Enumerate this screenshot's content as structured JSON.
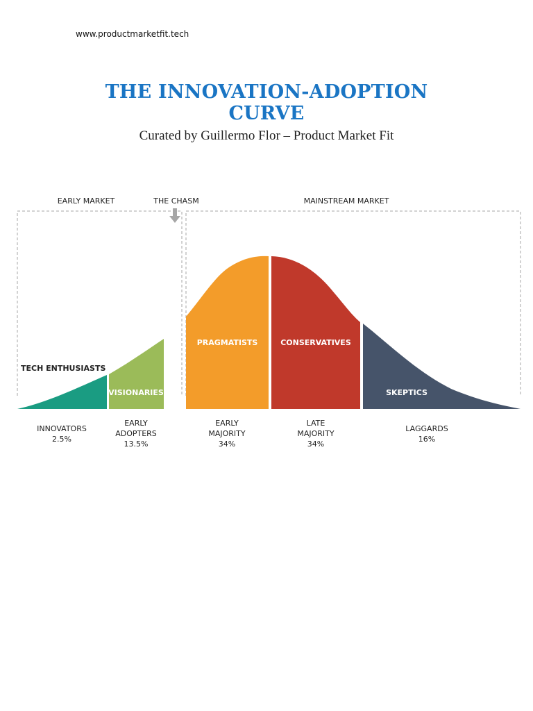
{
  "header": {
    "url": "www.productmarketfit.tech",
    "title_line1": "THE INNOVATION-ADOPTION",
    "title_line2": "CURVE",
    "subtitle": "Curated by Guillermo Flor – Product Market Fit"
  },
  "diagram": {
    "regions": {
      "early_market": "EARLY MARKET",
      "chasm": "THE CHASM",
      "mainstream_market": "MAINSTREAM MARKET"
    },
    "tech_enthusiasts": "TECH ENTHUSIASTS",
    "segments": [
      {
        "persona": "",
        "line1": "INNOVATORS",
        "line2": "",
        "share": "2.5%",
        "color": "#1a9c82"
      },
      {
        "persona": "VISIONARIES",
        "line1": "EARLY",
        "line2": "ADOPTERS",
        "share": "13.5%",
        "color": "#9bbb59"
      },
      {
        "persona": "PRAGMATISTS",
        "line1": "EARLY",
        "line2": "MAJORITY",
        "share": "34%",
        "color": "#f39c2a"
      },
      {
        "persona": "CONSERVATIVES",
        "line1": "LATE",
        "line2": "MAJORITY",
        "share": "34%",
        "color": "#c0392b"
      },
      {
        "persona": "SKEPTICS",
        "line1": "LAGGARDS",
        "line2": "",
        "share": "16%",
        "color": "#46546a"
      }
    ],
    "arrow_color": "#a6a6a6",
    "border_color": "#a6a6a6"
  }
}
